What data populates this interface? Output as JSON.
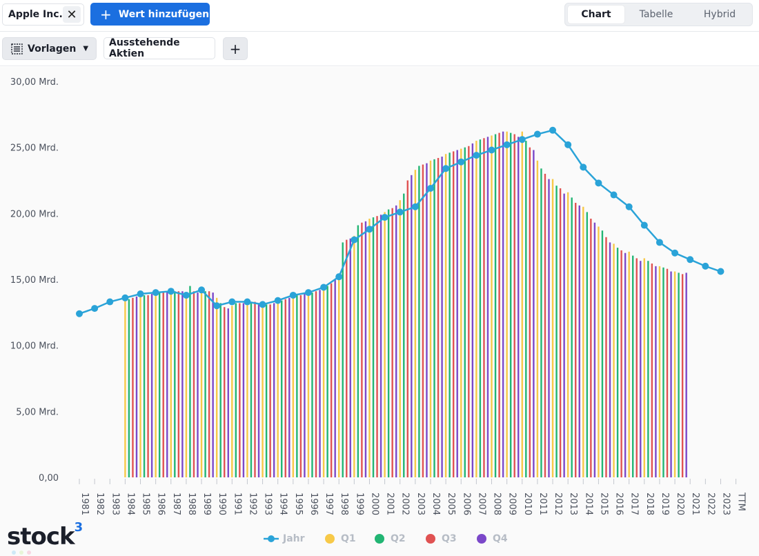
{
  "toolbar": {
    "company_chip": "Apple Inc.",
    "close_symbol": "✕",
    "add_value_label": "Wert hinzufügen",
    "view_options": [
      "Chart",
      "Tabelle",
      "Hybrid"
    ],
    "active_view": "Chart",
    "templates_label": "Vorlagen",
    "metric_chip": "Ausstehende Aktien",
    "add_symbol": "+"
  },
  "logo": {
    "text": "stock",
    "sup": "3"
  },
  "colors": {
    "accent": "#1b6fe0",
    "line": "#2aa3d8",
    "Q1": "#f7c948",
    "Q2": "#22b573",
    "Q3": "#e05252",
    "Q4": "#7b48c9"
  },
  "chart_data": {
    "type": "bar",
    "title": "",
    "ylabel": "",
    "ylim": [
      0,
      30
    ],
    "ytick_labels": [
      "0,00",
      "5,00 Mrd.",
      "10,00 Mrd.",
      "15,00 Mrd.",
      "20,00 Mrd.",
      "25,00 Mrd.",
      "30,00 Mrd."
    ],
    "ytick_values": [
      0,
      5,
      10,
      15,
      20,
      25,
      30
    ],
    "categories": [
      "1981",
      "1982",
      "1983",
      "1984",
      "1985",
      "1986",
      "1987",
      "1988",
      "1989",
      "1990",
      "1991",
      "1992",
      "1993",
      "1994",
      "1995",
      "1996",
      "1997",
      "1998",
      "1999",
      "2000",
      "2001",
      "2002",
      "2003",
      "2004",
      "2005",
      "2006",
      "2007",
      "2008",
      "2009",
      "2010",
      "2011",
      "2012",
      "2013",
      "2014",
      "2015",
      "2016",
      "2017",
      "2018",
      "2019",
      "2020",
      "2021",
      "2022",
      "2023",
      "TTM"
    ],
    "grid": false,
    "legend": {
      "position": "bottom",
      "entries": [
        "Jahr",
        "Q1",
        "Q2",
        "Q3",
        "Q4"
      ]
    },
    "annual": {
      "name": "Jahr",
      "type": "line",
      "values": [
        12.4,
        12.8,
        13.3,
        13.6,
        13.9,
        14.0,
        14.1,
        13.8,
        14.2,
        13.0,
        13.3,
        13.3,
        13.1,
        13.4,
        13.8,
        14.0,
        14.4,
        15.2,
        18.0,
        18.8,
        19.7,
        20.1,
        20.5,
        21.9,
        23.4,
        23.9,
        24.4,
        24.8,
        25.2,
        25.6,
        26.0,
        26.3,
        25.2,
        23.5,
        22.3,
        21.4,
        20.5,
        19.1,
        17.8,
        17.0,
        16.5,
        16.0,
        15.6
      ]
    },
    "quarterly": {
      "series": [
        "Q1",
        "Q2",
        "Q3",
        "Q4"
      ],
      "start_year": "1984",
      "values": [
        [
          13.4,
          13.5,
          13.6,
          13.7
        ],
        [
          13.7,
          13.8,
          13.8,
          13.9
        ],
        [
          13.9,
          14.0,
          14.0,
          14.1
        ],
        [
          14.0,
          14.1,
          14.1,
          14.1
        ],
        [
          13.8,
          14.5,
          14.1,
          14.0
        ],
        [
          14.0,
          14.1,
          14.1,
          14.0
        ],
        [
          13.6,
          13.2,
          12.9,
          12.8
        ],
        [
          13.0,
          13.2,
          13.2,
          13.2
        ],
        [
          13.2,
          13.3,
          13.3,
          13.2
        ],
        [
          13.1,
          13.1,
          13.1,
          13.2
        ],
        [
          13.3,
          13.4,
          13.5,
          13.6
        ],
        [
          13.7,
          13.8,
          13.8,
          13.9
        ],
        [
          14.0,
          14.0,
          14.1,
          14.2
        ],
        [
          14.4,
          14.5,
          14.7,
          15.0
        ],
        [
          15.2,
          17.8,
          18.0,
          18.1
        ],
        [
          18.3,
          19.1,
          19.3,
          19.4
        ],
        [
          19.6,
          19.7,
          19.8,
          19.9
        ],
        [
          20.1,
          20.3,
          20.4,
          20.6
        ],
        [
          21.0,
          21.5,
          22.5,
          22.9
        ],
        [
          23.3,
          23.6,
          23.7,
          23.8
        ],
        [
          24.0,
          24.1,
          24.2,
          24.3
        ],
        [
          24.5,
          24.6,
          24.7,
          24.8
        ],
        [
          24.9,
          25.0,
          25.1,
          25.3
        ],
        [
          25.5,
          25.6,
          25.7,
          25.8
        ],
        [
          25.9,
          26.0,
          26.1,
          26.2
        ],
        [
          26.2,
          26.1,
          26.0,
          25.8
        ],
        [
          26.2,
          25.5,
          25.0,
          24.8
        ],
        [
          24.0,
          23.4,
          23.0,
          22.6
        ],
        [
          22.6,
          22.1,
          21.9,
          21.5
        ],
        [
          21.6,
          21.2,
          20.8,
          20.6
        ],
        [
          20.5,
          20.1,
          19.6,
          19.3
        ],
        [
          19.0,
          18.7,
          18.2,
          17.8
        ],
        [
          17.7,
          17.4,
          17.2,
          17.0
        ],
        [
          17.1,
          16.8,
          16.6,
          16.4
        ],
        [
          16.6,
          16.4,
          16.2,
          16.0
        ],
        [
          16.0,
          15.9,
          15.8,
          15.6
        ],
        [
          15.6,
          15.5,
          15.4,
          15.5
        ]
      ]
    }
  }
}
